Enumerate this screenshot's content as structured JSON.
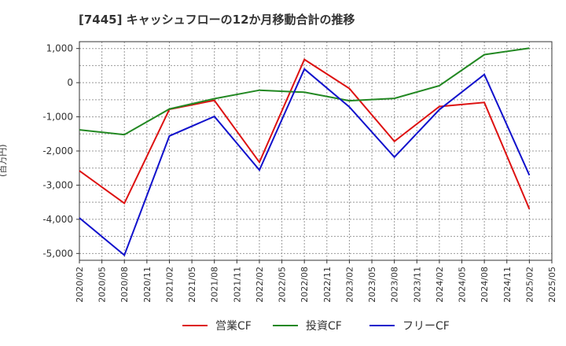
{
  "chart_data": {
    "type": "line",
    "title": "[7445]  キャッシュフローの12か月移動合計の推移",
    "xlabel": "",
    "ylabel": "(百万円)",
    "ylim": [
      -5200,
      1200
    ],
    "yticks": [
      1000,
      0,
      -1000,
      -2000,
      -3000,
      -4000,
      -5000
    ],
    "ytick_labels": [
      "1,000",
      "0",
      "-1,000",
      "-2,000",
      "-3,000",
      "-4,000",
      "-5,000"
    ],
    "categories": [
      "2020/02",
      "2020/05",
      "2020/08",
      "2020/11",
      "2021/02",
      "2021/05",
      "2021/08",
      "2021/11",
      "2022/02",
      "2022/05",
      "2022/08",
      "2022/11",
      "2023/02",
      "2023/05",
      "2023/08",
      "2023/11",
      "2024/02",
      "2024/05",
      "2024/08",
      "2024/11",
      "2025/02",
      "2025/05"
    ],
    "grid": true,
    "legend_position": "bottom",
    "series": [
      {
        "name": "営業CF",
        "color": "#dd1111",
        "points": [
          {
            "x": "2020/02",
            "y": -2580
          },
          {
            "x": "2020/08",
            "y": -3530
          },
          {
            "x": "2021/02",
            "y": -780
          },
          {
            "x": "2021/08",
            "y": -520
          },
          {
            "x": "2022/02",
            "y": -2330
          },
          {
            "x": "2022/08",
            "y": 680
          },
          {
            "x": "2023/02",
            "y": -170
          },
          {
            "x": "2023/08",
            "y": -1720
          },
          {
            "x": "2024/02",
            "y": -700
          },
          {
            "x": "2024/08",
            "y": -580
          },
          {
            "x": "2025/02",
            "y": -3700
          }
        ]
      },
      {
        "name": "投資CF",
        "color": "#228822",
        "points": [
          {
            "x": "2020/02",
            "y": -1380
          },
          {
            "x": "2020/08",
            "y": -1520
          },
          {
            "x": "2021/02",
            "y": -770
          },
          {
            "x": "2021/08",
            "y": -470
          },
          {
            "x": "2022/02",
            "y": -220
          },
          {
            "x": "2022/08",
            "y": -280
          },
          {
            "x": "2023/02",
            "y": -530
          },
          {
            "x": "2023/08",
            "y": -460
          },
          {
            "x": "2024/02",
            "y": -90
          },
          {
            "x": "2024/08",
            "y": 820
          },
          {
            "x": "2025/02",
            "y": 1010
          }
        ]
      },
      {
        "name": "フリーCF",
        "color": "#1111cc",
        "points": [
          {
            "x": "2020/02",
            "y": -3960
          },
          {
            "x": "2020/08",
            "y": -5050
          },
          {
            "x": "2021/02",
            "y": -1560
          },
          {
            "x": "2021/08",
            "y": -990
          },
          {
            "x": "2022/02",
            "y": -2560
          },
          {
            "x": "2022/08",
            "y": 400
          },
          {
            "x": "2023/02",
            "y": -710
          },
          {
            "x": "2023/08",
            "y": -2180
          },
          {
            "x": "2024/02",
            "y": -790
          },
          {
            "x": "2024/08",
            "y": 240
          },
          {
            "x": "2025/02",
            "y": -2710
          }
        ]
      }
    ]
  }
}
